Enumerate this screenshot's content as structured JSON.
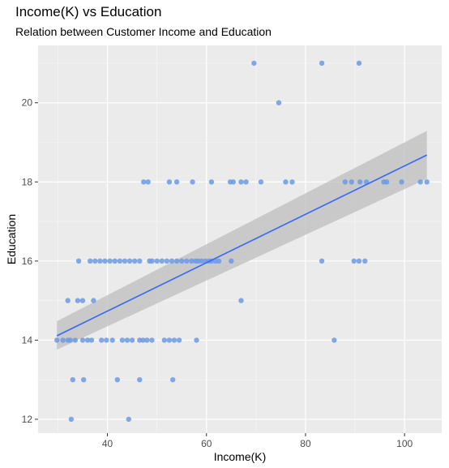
{
  "chart_data": {
    "type": "scatter",
    "title": "Income(K) vs Education",
    "subtitle": "Relation between Customer Income and Education",
    "xlabel": "Income(K)",
    "ylabel": "Education",
    "xlim": [
      26.0,
      107.5
    ],
    "ylim": [
      11.65,
      21.45
    ],
    "x_ticks": [
      40,
      60,
      80,
      100
    ],
    "y_ticks": [
      12,
      14,
      16,
      18,
      20
    ],
    "grid": true,
    "legend": "none",
    "colors": {
      "panel": "#ebebeb",
      "grid_major": "#ffffff",
      "point": "#6b9ae6",
      "line": "#3366ff",
      "band": "#bdbdbd"
    },
    "points": [
      [
        29.8,
        14
      ],
      [
        31.0,
        14
      ],
      [
        32.0,
        14
      ],
      [
        32.5,
        14
      ],
      [
        33.5,
        14
      ],
      [
        35.0,
        14
      ],
      [
        36.0,
        14
      ],
      [
        36.8,
        14
      ],
      [
        38.8,
        14
      ],
      [
        39.8,
        14
      ],
      [
        41.0,
        14
      ],
      [
        43.0,
        14
      ],
      [
        44.0,
        14
      ],
      [
        45.0,
        14
      ],
      [
        46.5,
        14
      ],
      [
        47.2,
        14
      ],
      [
        48.0,
        14
      ],
      [
        49.0,
        14
      ],
      [
        51.5,
        14
      ],
      [
        52.5,
        14
      ],
      [
        53.5,
        14
      ],
      [
        54.5,
        14
      ],
      [
        58.0,
        14
      ],
      [
        85.8,
        14
      ],
      [
        32.0,
        15
      ],
      [
        34.0,
        15
      ],
      [
        35.0,
        15
      ],
      [
        37.2,
        15
      ],
      [
        67.0,
        15
      ],
      [
        33.0,
        13
      ],
      [
        35.2,
        13
      ],
      [
        42.0,
        13
      ],
      [
        46.5,
        13
      ],
      [
        53.2,
        13
      ],
      [
        32.7,
        12
      ],
      [
        44.3,
        12
      ],
      [
        34.2,
        16
      ],
      [
        36.5,
        16
      ],
      [
        37.5,
        16
      ],
      [
        38.5,
        16
      ],
      [
        39.5,
        16
      ],
      [
        40.5,
        16
      ],
      [
        41.5,
        16
      ],
      [
        42.5,
        16
      ],
      [
        43.5,
        16
      ],
      [
        44.5,
        16
      ],
      [
        45.5,
        16
      ],
      [
        46.5,
        16
      ],
      [
        48.5,
        16
      ],
      [
        49.0,
        16
      ],
      [
        50.0,
        16
      ],
      [
        51.0,
        16
      ],
      [
        52.0,
        16
      ],
      [
        53.0,
        16
      ],
      [
        54.0,
        16
      ],
      [
        55.0,
        16
      ],
      [
        56.0,
        16
      ],
      [
        57.0,
        16
      ],
      [
        57.8,
        16
      ],
      [
        58.3,
        16
      ],
      [
        59.0,
        16
      ],
      [
        59.8,
        16
      ],
      [
        60.5,
        16
      ],
      [
        61.0,
        16
      ],
      [
        61.8,
        16
      ],
      [
        62.5,
        16
      ],
      [
        65.0,
        16
      ],
      [
        83.3,
        16
      ],
      [
        89.8,
        16
      ],
      [
        90.8,
        16
      ],
      [
        92.0,
        16
      ],
      [
        47.3,
        18
      ],
      [
        48.2,
        18
      ],
      [
        52.5,
        18
      ],
      [
        54.0,
        18
      ],
      [
        57.2,
        18
      ],
      [
        61.0,
        18
      ],
      [
        64.8,
        18
      ],
      [
        65.4,
        18
      ],
      [
        67.0,
        18
      ],
      [
        68.0,
        18
      ],
      [
        71.0,
        18
      ],
      [
        76.0,
        18
      ],
      [
        77.3,
        18
      ],
      [
        88.0,
        18
      ],
      [
        89.3,
        18
      ],
      [
        91.0,
        18
      ],
      [
        92.3,
        18
      ],
      [
        95.8,
        18
      ],
      [
        96.4,
        18
      ],
      [
        99.4,
        18
      ],
      [
        103.2,
        18
      ],
      [
        104.5,
        18
      ],
      [
        74.6,
        20
      ],
      [
        69.6,
        21
      ],
      [
        83.3,
        21
      ],
      [
        90.8,
        21
      ]
    ],
    "smooth_line": [
      [
        29.8,
        14.11
      ],
      [
        104.5,
        18.68
      ]
    ],
    "band_upper": [
      [
        29.8,
        14.48
      ],
      [
        104.5,
        19.29
      ]
    ],
    "band_lower": [
      [
        29.8,
        13.76
      ],
      [
        104.5,
        18.08
      ]
    ]
  }
}
